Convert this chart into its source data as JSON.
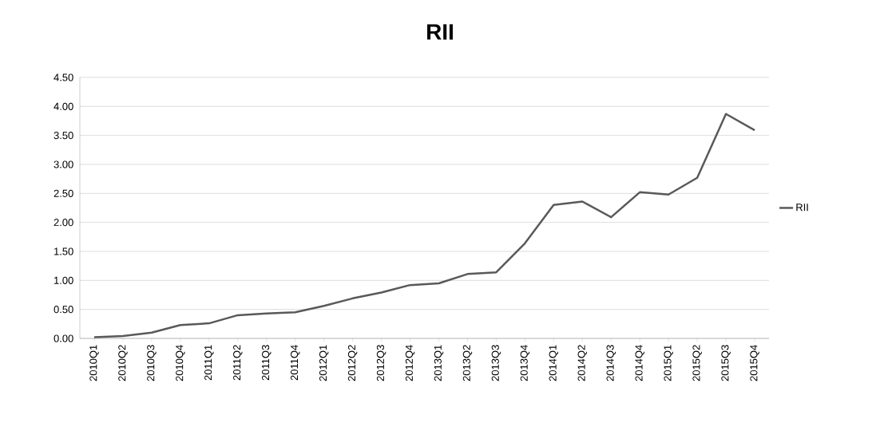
{
  "chart_data": {
    "type": "line",
    "title": "RII",
    "categories": [
      "2010Q1",
      "2010Q2",
      "2010Q3",
      "2010Q4",
      "2011Q1",
      "2011Q2",
      "2011Q3",
      "2011Q4",
      "2012Q1",
      "2012Q2",
      "2012Q3",
      "2012Q4",
      "2013Q1",
      "2013Q2",
      "2013Q3",
      "2013Q4",
      "2014Q1",
      "2014Q2",
      "2014Q3",
      "2014Q4",
      "2015Q1",
      "2015Q2",
      "2015Q3",
      "2015Q4"
    ],
    "series": [
      {
        "name": "RII",
        "color": "#595959",
        "values": [
          0.02,
          0.04,
          0.1,
          0.23,
          0.26,
          0.4,
          0.43,
          0.45,
          0.56,
          0.69,
          0.79,
          0.92,
          0.95,
          1.11,
          1.14,
          1.64,
          2.3,
          2.36,
          2.09,
          2.52,
          2.48,
          2.77,
          3.87,
          3.59
        ]
      }
    ],
    "ylim": [
      0,
      4.5
    ],
    "yticks": [
      {
        "value": 0,
        "label": "0.00"
      },
      {
        "value": 0.5,
        "label": "0.50"
      },
      {
        "value": 1,
        "label": "1.00"
      },
      {
        "value": 1.5,
        "label": "1.50"
      },
      {
        "value": 2,
        "label": "2.00"
      },
      {
        "value": 2.5,
        "label": "2.50"
      },
      {
        "value": 3,
        "label": "3.00"
      },
      {
        "value": 3.5,
        "label": "3.50"
      },
      {
        "value": 4,
        "label": "4.00"
      },
      {
        "value": 4.5,
        "label": "4.50"
      }
    ],
    "grid": "y",
    "legend": "right",
    "marker": "none",
    "line_style": "solid"
  }
}
